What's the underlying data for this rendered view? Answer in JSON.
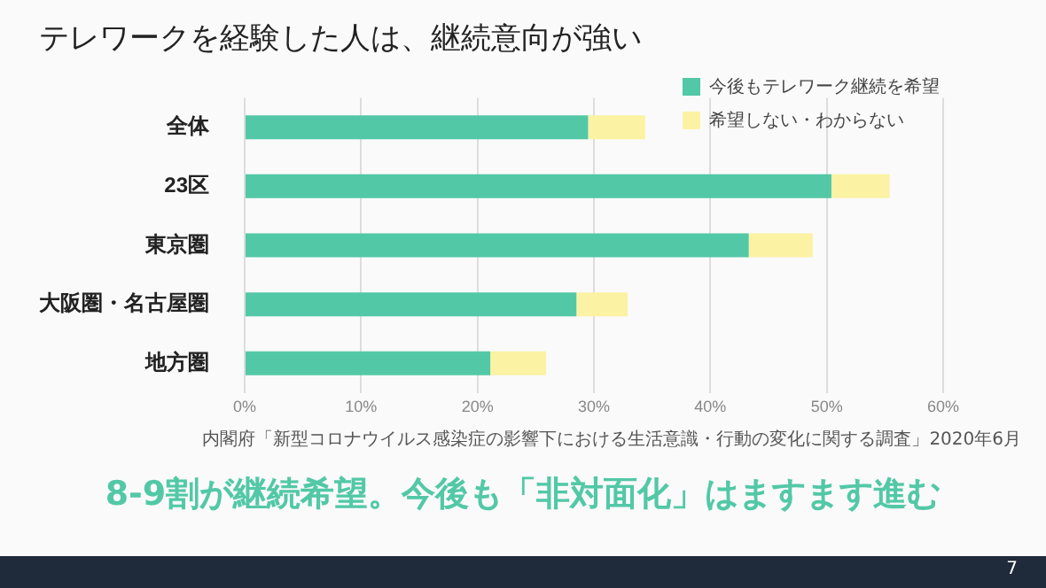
{
  "chart_data": {
    "type": "bar",
    "orientation": "horizontal",
    "stacked": true,
    "title": "テレワークを経験した人は、継続意向が強い",
    "categories": [
      "全体",
      "23区",
      "東京圏",
      "大阪圏・名古屋圏",
      "地方圏"
    ],
    "series": [
      {
        "name": "今後もテレワーク継続を希望",
        "color": "#52c8a6",
        "values": [
          29.5,
          50.4,
          43.3,
          28.5,
          21.1
        ]
      },
      {
        "name": "希望しない・わからない",
        "color": "#fbf2a4",
        "values": [
          4.9,
          5.0,
          5.5,
          4.4,
          4.8
        ]
      }
    ],
    "xlim": [
      0,
      60
    ],
    "xticks": [
      {
        "value": 0,
        "label": "0%"
      },
      {
        "value": 10,
        "label": "10%"
      },
      {
        "value": 20,
        "label": "20%"
      },
      {
        "value": 30,
        "label": "30%"
      },
      {
        "value": 40,
        "label": "40%"
      },
      {
        "value": 50,
        "label": "50%"
      },
      {
        "value": 60,
        "label": "60%"
      }
    ],
    "grid": "x",
    "legend": "top right",
    "annotations": [
      "内閣府「新型コロナウイルス感染症の影響下における生活意識・行動の変化に関する調査」2020年6月",
      "8-9割が継続希望。今後も「非対面化」はますます進む",
      "7"
    ]
  }
}
